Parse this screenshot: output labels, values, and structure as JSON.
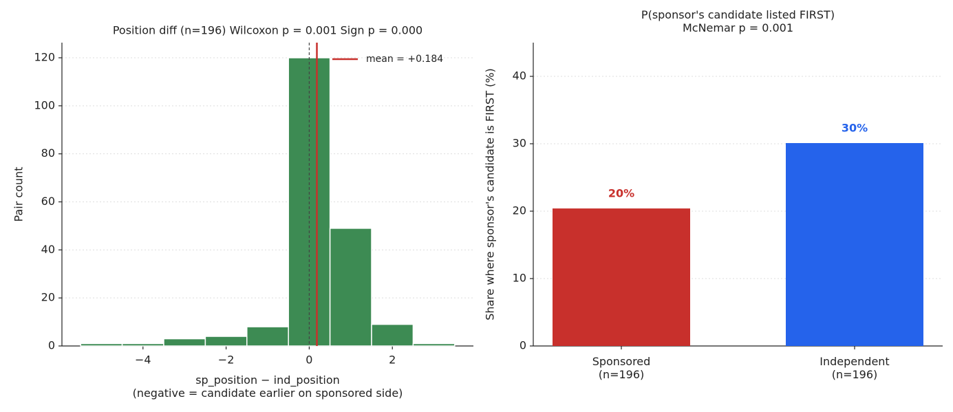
{
  "chart_data": [
    {
      "type": "histogram",
      "title": "Position diff (n=196)  Wilcoxon p = 0.001  Sign p = 0.000",
      "xlabel": "sp_position − ind_position\n(negative = candidate earlier on sponsored side)",
      "ylabel": "Pair count",
      "bins": [
        -5.5,
        -4.5,
        -3.5,
        -2.5,
        -1.5,
        -0.5,
        0.5,
        1.5,
        2.5,
        3.5
      ],
      "values": [
        1,
        1,
        3,
        4,
        8,
        120,
        49,
        9,
        1
      ],
      "color": "#3d8b53",
      "reference_line": 0,
      "mean": 0.184,
      "mean_label": "mean = +0.184",
      "mean_color": "#c8302c",
      "xlim": [
        -5.95,
        3.95
      ],
      "xticks": [
        {
          "value": -4,
          "label": "−4"
        },
        {
          "value": -2,
          "label": "−2"
        },
        0,
        2
      ],
      "ylim": [
        0,
        126.3
      ],
      "yticks": [
        0,
        20,
        40,
        60,
        80,
        100,
        120
      ],
      "grid": true,
      "legend": "upper right"
    },
    {
      "type": "bar",
      "title": "P(sponsor's candidate listed FIRST)\nMcNemar p = 0.001",
      "ylabel": "Share where sponsor's candidate is FIRST (%)",
      "categories": [
        "Sponsored\n(n=196)",
        "Independent\n(n=196)"
      ],
      "values": [
        20.4,
        30.1
      ],
      "value_labels": [
        "20%",
        "30%"
      ],
      "colors": [
        "#c8302c",
        "#2563eb"
      ],
      "ylim": [
        0,
        45
      ],
      "yticks": [
        0,
        10,
        20,
        30,
        40
      ],
      "grid": true
    }
  ]
}
